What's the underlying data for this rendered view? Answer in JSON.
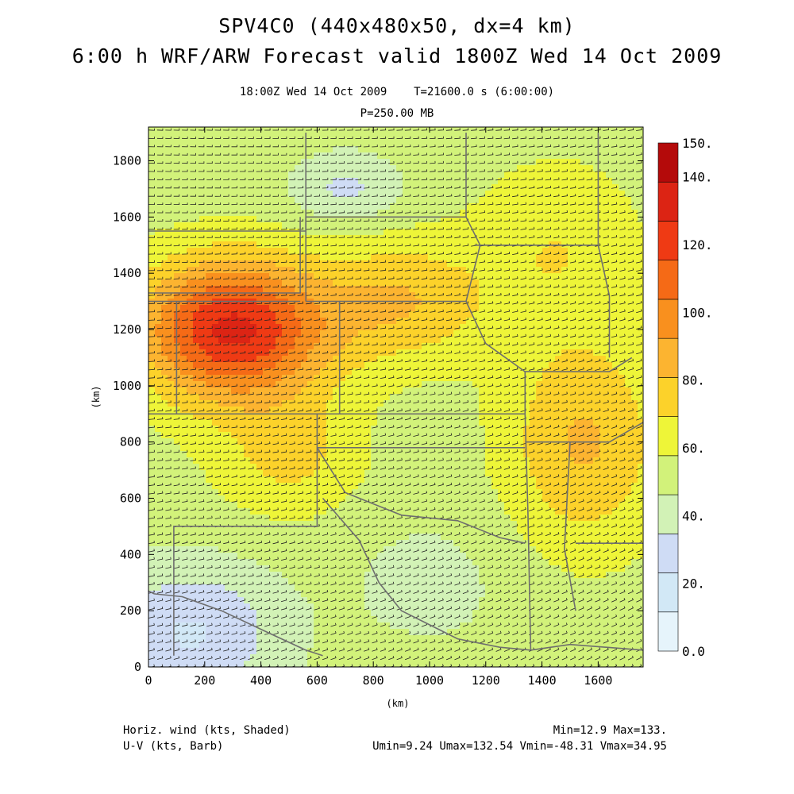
{
  "header": {
    "title_line1": "SPV4C0 (440x480x50, dx=4 km)",
    "title_line2": "6:00 h WRF/ARW Forecast valid 1800Z Wed 14 Oct 2009",
    "valid_time": "18:00Z Wed 14 Oct 2009",
    "model_time": "T=21600.0 s (6:00:00)",
    "level": "P=250.00 MB"
  },
  "axes": {
    "x_unit": "(km)",
    "y_unit": "(km)",
    "x_ticks": [
      "0",
      "200",
      "400",
      "600",
      "800",
      "1000",
      "1200",
      "1400",
      "1600"
    ],
    "y_ticks": [
      "0",
      "200",
      "400",
      "600",
      "800",
      "1000",
      "1200",
      "1400",
      "1600",
      "1800"
    ]
  },
  "colorbar": {
    "labels": [
      "0.0",
      "20.",
      "40.",
      "60.",
      "80.",
      "100.",
      "120.",
      "140.",
      "150."
    ],
    "colors": [
      "#e6f4fb",
      "#d2e8f6",
      "#cfdcf5",
      "#d2f2b6",
      "#d2f27a",
      "#eef538",
      "#fcd22a",
      "#fcb430",
      "#f9901e",
      "#f56a16",
      "#ef3a14",
      "#dc2414",
      "#b40a0a"
    ]
  },
  "footer": {
    "field_name": "Horiz. wind (kts, Shaded)",
    "vector_name": "U-V (kts, Barb)",
    "minmax": "Min=12.9 Max=133.",
    "component_stats": "Umin=9.24 Umax=132.54 Vmin=-48.31 Vmax=34.95"
  },
  "chart_data": {
    "type": "heatmap",
    "title": "SPV4C0 (440x480x50, dx=4 km)",
    "xlabel": "(km)",
    "ylabel": "(km)",
    "xlim": [
      0,
      1760
    ],
    "ylim": [
      0,
      1920
    ],
    "field": "Horiz. wind (kts, Shaded)",
    "vectors": "U-V (kts, Barb)",
    "min": 12.9,
    "max": 133,
    "umin": 9.24,
    "umax": 132.54,
    "vmin": -48.31,
    "vmax": 34.95,
    "colorbar_range": [
      0,
      150
    ],
    "jet_core": {
      "x_km": 300,
      "y_km": 1200,
      "speed_kts": 133
    }
  }
}
